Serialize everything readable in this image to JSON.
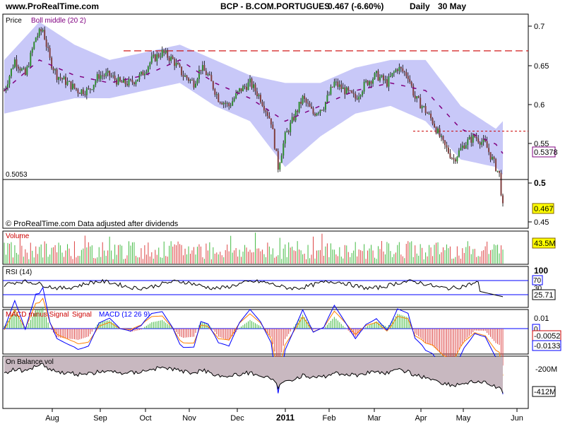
{
  "header": {
    "site": "www.ProRealTime.com",
    "instrument": "BCP - B.COM.PORTUGUES",
    "price_change": "0.467 (-6.60%)",
    "period": "Daily",
    "date": "30 May"
  },
  "panels": {
    "price": {
      "label_price": "Price",
      "label_boll": "Boll middle (20 2)",
      "footnote": "© ProRealTime.com  Data adjusted after dividends",
      "y_ticks": [
        "0.7",
        "0.65",
        "0.6",
        "0.55",
        "0.5",
        "0.45"
      ],
      "level_label": "0.5053",
      "badge_boll": "0.5378",
      "badge_price": "0.467"
    },
    "volume": {
      "label": "Volume",
      "badge": "43.5M"
    },
    "rsi": {
      "label": "RSI (14)",
      "tick_100": "100",
      "badge_70": "70",
      "tick_30": "30",
      "badge_val": "25.71"
    },
    "macd": {
      "label_a": "MACD minus Signal",
      "label_b": "Signal",
      "label_c": "MACD (12 26 9)",
      "tick": "0.01",
      "badge_0": "0",
      "badge_1": "-0.0052",
      "badge_2": "-0.0133"
    },
    "obv": {
      "label": "On Balance vol",
      "tick": "-200M",
      "badge": "-412M"
    }
  },
  "x_axis": {
    "labels": [
      "Aug",
      "Sep",
      "Oct",
      "Nov",
      "Dec",
      "2011",
      "Feb",
      "Mar",
      "Apr",
      "May",
      "Jun"
    ]
  },
  "colors": {
    "band": "#c8c8f8",
    "boll_middle": "#800080",
    "resistance": "#cc0000",
    "candle_up": "#2e8b2e",
    "candle_down": "#804040",
    "vol_up": "#44bb44",
    "vol_down": "#dd4444",
    "rsi_line": "#000000",
    "rsi_level": "#0000ff",
    "macd_line": "#0000ff",
    "signal_line": "#ff8000",
    "obv_fill": "#c8b8c0",
    "badge_border": "#800080",
    "badge_bg": "#ffff00"
  },
  "chart_data": {
    "type": "candlestick",
    "title": "BCP - B.COM.PORTUGUES",
    "ylim": [
      0.44,
      0.72
    ],
    "x_months": [
      "Aug",
      "Sep",
      "Oct",
      "Nov",
      "Dec",
      "Jan",
      "Feb",
      "Mar",
      "Apr",
      "May"
    ],
    "close_path": [
      [
        0,
        0.62
      ],
      [
        6,
        0.66
      ],
      [
        12,
        0.64
      ],
      [
        18,
        0.69
      ],
      [
        22,
        0.7
      ],
      [
        26,
        0.66
      ],
      [
        30,
        0.64
      ],
      [
        36,
        0.63
      ],
      [
        42,
        0.62
      ],
      [
        48,
        0.62
      ],
      [
        54,
        0.64
      ],
      [
        60,
        0.64
      ],
      [
        66,
        0.63
      ],
      [
        72,
        0.63
      ],
      [
        78,
        0.64
      ],
      [
        84,
        0.66
      ],
      [
        90,
        0.67
      ],
      [
        96,
        0.66
      ],
      [
        102,
        0.64
      ],
      [
        108,
        0.63
      ],
      [
        112,
        0.65
      ],
      [
        116,
        0.64
      ],
      [
        122,
        0.61
      ],
      [
        128,
        0.6
      ],
      [
        134,
        0.62
      ],
      [
        140,
        0.63
      ],
      [
        146,
        0.61
      ],
      [
        152,
        0.58
      ],
      [
        156,
        0.52
      ],
      [
        160,
        0.56
      ],
      [
        164,
        0.58
      ],
      [
        170,
        0.61
      ],
      [
        176,
        0.59
      ],
      [
        182,
        0.6
      ],
      [
        188,
        0.63
      ],
      [
        194,
        0.62
      ],
      [
        200,
        0.61
      ],
      [
        206,
        0.63
      ],
      [
        212,
        0.64
      ],
      [
        218,
        0.63
      ],
      [
        224,
        0.65
      ],
      [
        230,
        0.64
      ],
      [
        234,
        0.61
      ],
      [
        238,
        0.6
      ],
      [
        244,
        0.58
      ],
      [
        250,
        0.55
      ],
      [
        256,
        0.53
      ],
      [
        262,
        0.55
      ],
      [
        268,
        0.56
      ],
      [
        274,
        0.55
      ],
      [
        278,
        0.53
      ],
      [
        282,
        0.51
      ],
      [
        284,
        0.467
      ]
    ],
    "boll_middle_path": [
      [
        0,
        0.62
      ],
      [
        20,
        0.66
      ],
      [
        40,
        0.64
      ],
      [
        60,
        0.63
      ],
      [
        80,
        0.64
      ],
      [
        100,
        0.66
      ],
      [
        120,
        0.63
      ],
      [
        140,
        0.61
      ],
      [
        160,
        0.58
      ],
      [
        180,
        0.6
      ],
      [
        200,
        0.62
      ],
      [
        220,
        0.63
      ],
      [
        240,
        0.62
      ],
      [
        260,
        0.57
      ],
      [
        280,
        0.55
      ],
      [
        284,
        0.5378
      ]
    ],
    "boll_upper_path": [
      [
        0,
        0.66
      ],
      [
        20,
        0.71
      ],
      [
        40,
        0.68
      ],
      [
        60,
        0.66
      ],
      [
        80,
        0.67
      ],
      [
        100,
        0.68
      ],
      [
        120,
        0.66
      ],
      [
        140,
        0.64
      ],
      [
        160,
        0.63
      ],
      [
        180,
        0.63
      ],
      [
        200,
        0.65
      ],
      [
        220,
        0.66
      ],
      [
        240,
        0.66
      ],
      [
        260,
        0.6
      ],
      [
        280,
        0.57
      ],
      [
        284,
        0.58
      ]
    ],
    "boll_lower_path": [
      [
        0,
        0.59
      ],
      [
        20,
        0.6
      ],
      [
        40,
        0.61
      ],
      [
        60,
        0.61
      ],
      [
        80,
        0.62
      ],
      [
        100,
        0.63
      ],
      [
        120,
        0.6
      ],
      [
        140,
        0.58
      ],
      [
        160,
        0.52
      ],
      [
        180,
        0.56
      ],
      [
        200,
        0.59
      ],
      [
        220,
        0.6
      ],
      [
        240,
        0.58
      ],
      [
        260,
        0.53
      ],
      [
        280,
        0.52
      ],
      [
        284,
        0.51
      ]
    ],
    "resistance_long": 0.672,
    "resistance_short": 0.567,
    "support_level": 0.5053,
    "last_price": 0.467,
    "last_boll_middle": 0.5378,
    "last_volume_m": 43.5,
    "last_rsi": 25.71,
    "rsi_levels": [
      70,
      30
    ],
    "last_macd": -0.0133,
    "last_signal": -0.0052,
    "last_obv_m": -412
  }
}
